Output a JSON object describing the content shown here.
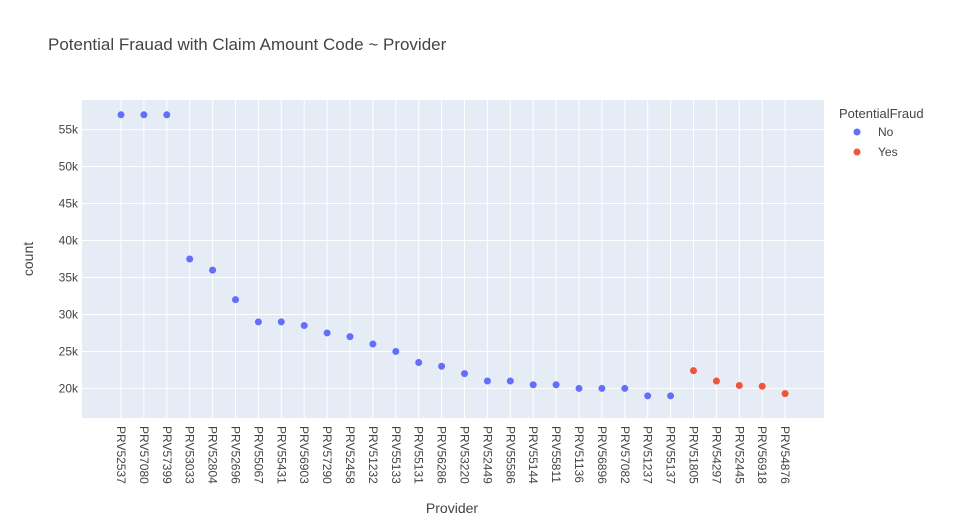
{
  "chart_data": {
    "type": "scatter",
    "title": "Potential Frauad with Claim Amount Code ~ Provider",
    "xlabel": "Provider",
    "ylabel": "count",
    "ylim": [
      16000,
      59000
    ],
    "yticks": [
      20000,
      25000,
      30000,
      35000,
      40000,
      45000,
      50000,
      55000
    ],
    "ytick_labels": [
      "20k",
      "25k",
      "30k",
      "35k",
      "40k",
      "45k",
      "50k",
      "55k"
    ],
    "grid": true,
    "legend": {
      "title": "PotentialFraud",
      "placement": "top-right"
    },
    "categories": [
      "PRV52537",
      "PRV57080",
      "PRV57399",
      "PRV53033",
      "PRV52804",
      "PRV52696",
      "PRV55067",
      "PRV55431",
      "PRV56903",
      "PRV57290",
      "PRV52458",
      "PRV51232",
      "PRV55133",
      "PRV55131",
      "PRV56286",
      "PRV53220",
      "PRV52449",
      "PRV55586",
      "PRV55144",
      "PRV55811",
      "PRV51136",
      "PRV56896",
      "PRV57082",
      "PRV51237",
      "PRV55137",
      "PRV51805",
      "PRV54297",
      "PRV52445",
      "PRV56918",
      "PRV54876"
    ],
    "series": [
      {
        "name": "No",
        "color": "#636efa",
        "x": [
          "PRV52537",
          "PRV57080",
          "PRV57399",
          "PRV53033",
          "PRV52804",
          "PRV52696",
          "PRV55067",
          "PRV55431",
          "PRV56903",
          "PRV57290",
          "PRV52458",
          "PRV51232",
          "PRV55133",
          "PRV55131",
          "PRV56286",
          "PRV53220",
          "PRV52449",
          "PRV55586",
          "PRV55144",
          "PRV55811",
          "PRV51136",
          "PRV56896",
          "PRV57082",
          "PRV51237",
          "PRV55137"
        ],
        "y": [
          57000,
          57000,
          57000,
          37500,
          36000,
          32000,
          29000,
          29000,
          28500,
          27500,
          27000,
          26000,
          25000,
          23500,
          23000,
          22000,
          21000,
          21000,
          20500,
          20500,
          20000,
          20000,
          20000,
          19000,
          19000
        ]
      },
      {
        "name": "Yes",
        "color": "#ef553b",
        "x": [
          "PRV51805",
          "PRV54297",
          "PRV52445",
          "PRV56918",
          "PRV54876"
        ],
        "y": [
          22400,
          21000,
          20400,
          20300,
          19300
        ]
      }
    ]
  }
}
